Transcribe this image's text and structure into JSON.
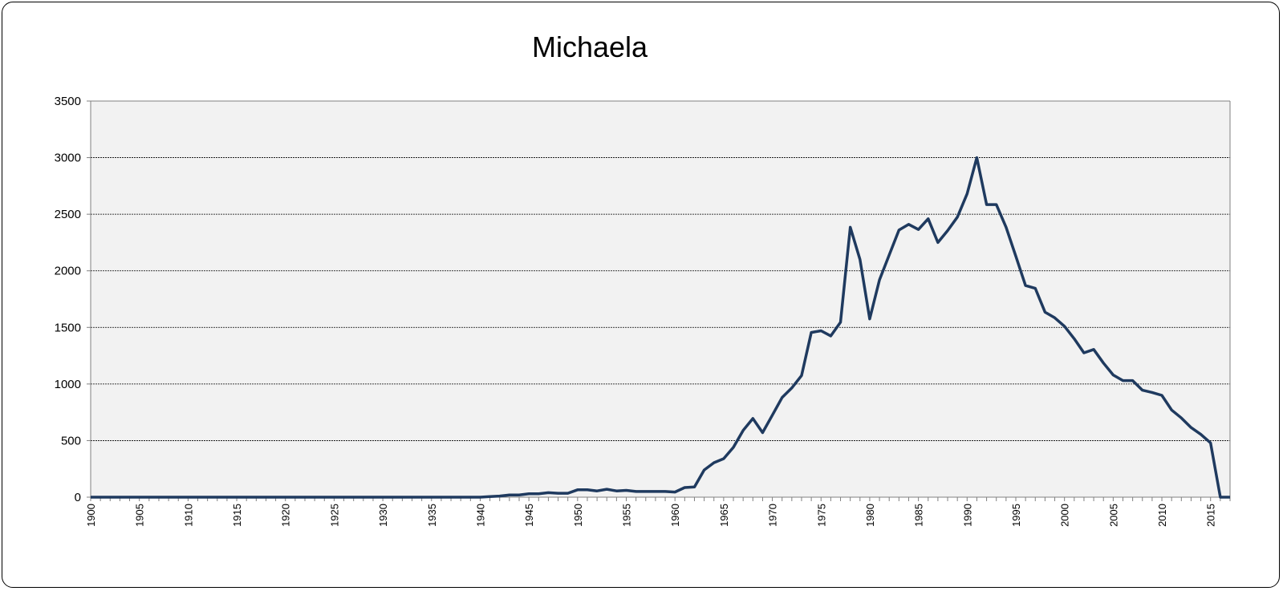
{
  "chart_data": {
    "type": "line",
    "title": "Michaela",
    "xlabel": "",
    "ylabel": "",
    "xlim": [
      1900,
      2017
    ],
    "ylim": [
      0,
      3500
    ],
    "y_ticks": [
      0,
      500,
      1000,
      1500,
      2000,
      2500,
      3000,
      3500
    ],
    "x_ticks": [
      1900,
      1905,
      1910,
      1915,
      1920,
      1925,
      1930,
      1935,
      1940,
      1945,
      1950,
      1955,
      1960,
      1965,
      1970,
      1975,
      1980,
      1985,
      1990,
      1995,
      2000,
      2005,
      2010,
      2015
    ],
    "grid": "horizontal-dashed",
    "legend": "none",
    "colors": {
      "line": "#1f3a5f",
      "plot_bg": "#f2f2f2"
    },
    "series": [
      {
        "x": [
          1900,
          1901,
          1902,
          1903,
          1904,
          1905,
          1906,
          1907,
          1908,
          1909,
          1910,
          1911,
          1912,
          1913,
          1914,
          1915,
          1916,
          1917,
          1918,
          1919,
          1920,
          1921,
          1922,
          1923,
          1924,
          1925,
          1926,
          1927,
          1928,
          1929,
          1930,
          1931,
          1932,
          1933,
          1934,
          1935,
          1936,
          1937,
          1938,
          1939,
          1940,
          1941,
          1942,
          1943,
          1944,
          1945,
          1946,
          1947,
          1948,
          1949,
          1950,
          1951,
          1952,
          1953,
          1954,
          1955,
          1956,
          1957,
          1958,
          1959,
          1960,
          1961,
          1962,
          1963,
          1964,
          1965,
          1966,
          1967,
          1968,
          1969,
          1970,
          1971,
          1972,
          1973,
          1974,
          1975,
          1976,
          1977,
          1978,
          1979,
          1980,
          1981,
          1982,
          1983,
          1984,
          1985,
          1986,
          1987,
          1988,
          1989,
          1990,
          1991,
          1992,
          1993,
          1994,
          1995,
          1996,
          1997,
          1998,
          1999,
          2000,
          2001,
          2002,
          2003,
          2004,
          2005,
          2006,
          2007,
          2008,
          2009,
          2010,
          2011,
          2012,
          2013,
          2014,
          2015,
          2016,
          2017
        ],
        "values": [
          0,
          0,
          0,
          0,
          0,
          0,
          0,
          0,
          0,
          0,
          0,
          0,
          0,
          0,
          0,
          0,
          0,
          0,
          0,
          0,
          0,
          0,
          0,
          0,
          0,
          0,
          0,
          0,
          0,
          0,
          0,
          0,
          0,
          0,
          0,
          0,
          0,
          0,
          0,
          0,
          0,
          5,
          10,
          20,
          20,
          30,
          30,
          40,
          35,
          35,
          65,
          65,
          55,
          70,
          55,
          60,
          50,
          50,
          50,
          50,
          45,
          85,
          90,
          240,
          305,
          340,
          440,
          590,
          695,
          570,
          725,
          880,
          965,
          1075,
          1455,
          1470,
          1425,
          1545,
          2385,
          2100,
          1575,
          1920,
          2140,
          2360,
          2410,
          2365,
          2460,
          2250,
          2355,
          2475,
          2680,
          3000,
          2585,
          2585,
          2385,
          2130,
          1870,
          1845,
          1635,
          1585,
          1510,
          1400,
          1275,
          1305,
          1185,
          1080,
          1030,
          1030,
          945,
          925,
          900,
          770,
          700,
          615,
          555,
          480,
          0,
          0
        ]
      }
    ]
  }
}
